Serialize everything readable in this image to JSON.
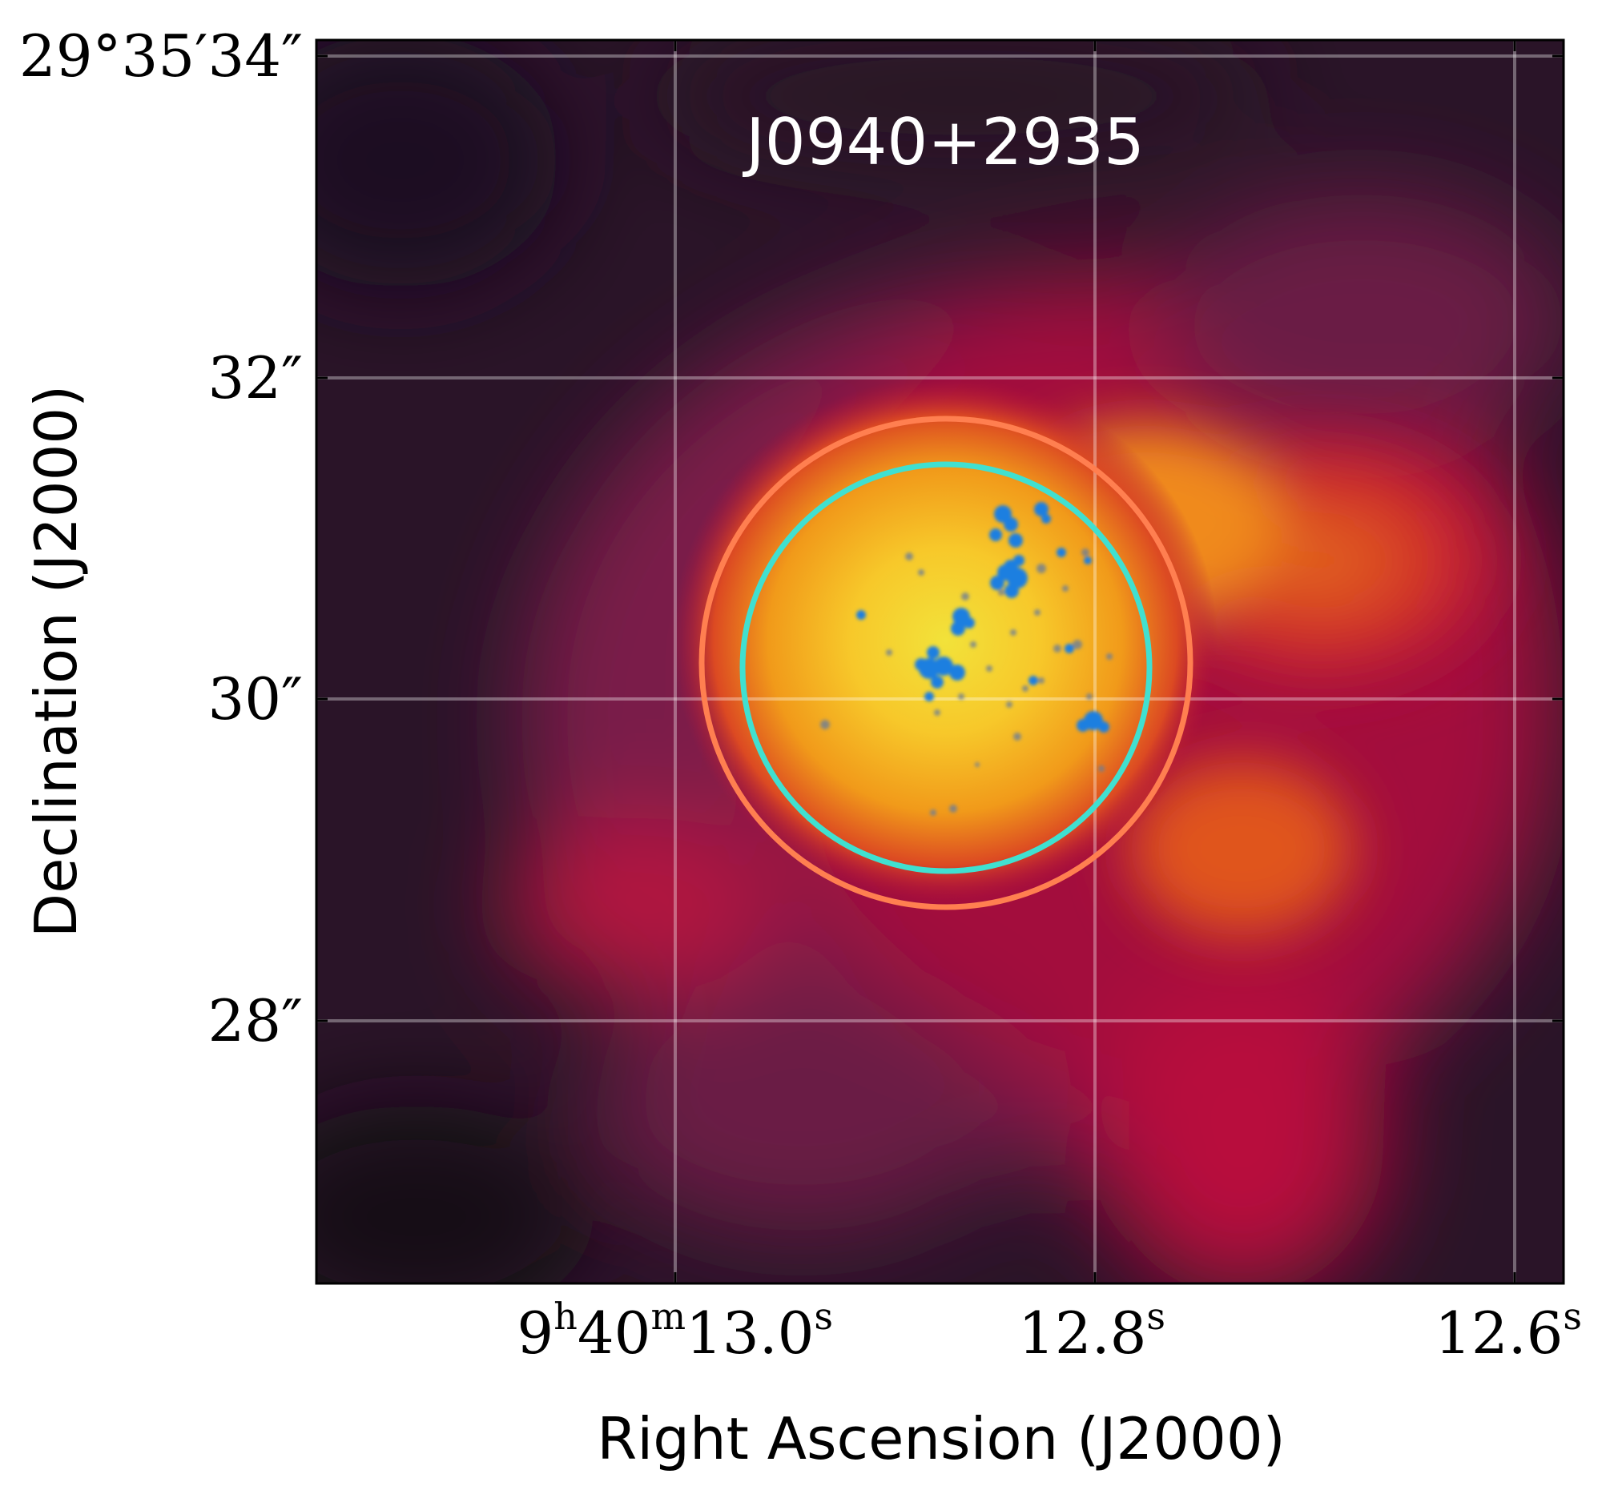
{
  "chart_data": {
    "type": "heatmap",
    "title": "J0940+2935",
    "xlabel": "Right Ascension (J2000)",
    "ylabel": "Declination (J2000)",
    "x_ticks": [
      {
        "value_s": 13.0,
        "label_main": "9",
        "label_sup1": "h",
        "label_mid": "40",
        "label_sup2": "m",
        "label_sec": "13.0",
        "label_sup3": "s"
      },
      {
        "value_s": 12.8,
        "label_main": "12.8",
        "label_sup": "s"
      },
      {
        "value_s": 12.6,
        "label_main": "12.6",
        "label_sup": "s"
      }
    ],
    "y_ticks": [
      {
        "value_arcsec": 34,
        "label": "29°35′34″"
      },
      {
        "value_arcsec": 32,
        "label": "32″"
      },
      {
        "value_arcsec": 30,
        "label": "30″"
      },
      {
        "value_arcsec": 28,
        "label": "28″"
      }
    ],
    "xlim_s": [
      13.17,
      12.58
    ],
    "ylim_arcsec": [
      26.35,
      34.1
    ],
    "grid": true,
    "colormap": "inferno-like (dark purple → crimson → orange → yellow)",
    "apertures": [
      {
        "name": "outer",
        "center_s": 12.873,
        "center_arcsec": 30.25,
        "radius_arcsec": 1.5,
        "color": "#ff7f50"
      },
      {
        "name": "inner",
        "center_s": 12.873,
        "center_arcsec": 30.2,
        "radius_arcsec": 1.25,
        "color": "#40e0d0"
      }
    ],
    "overlay": {
      "description": "blue knots (point-like sources)",
      "color": "#1e7fe0"
    }
  }
}
